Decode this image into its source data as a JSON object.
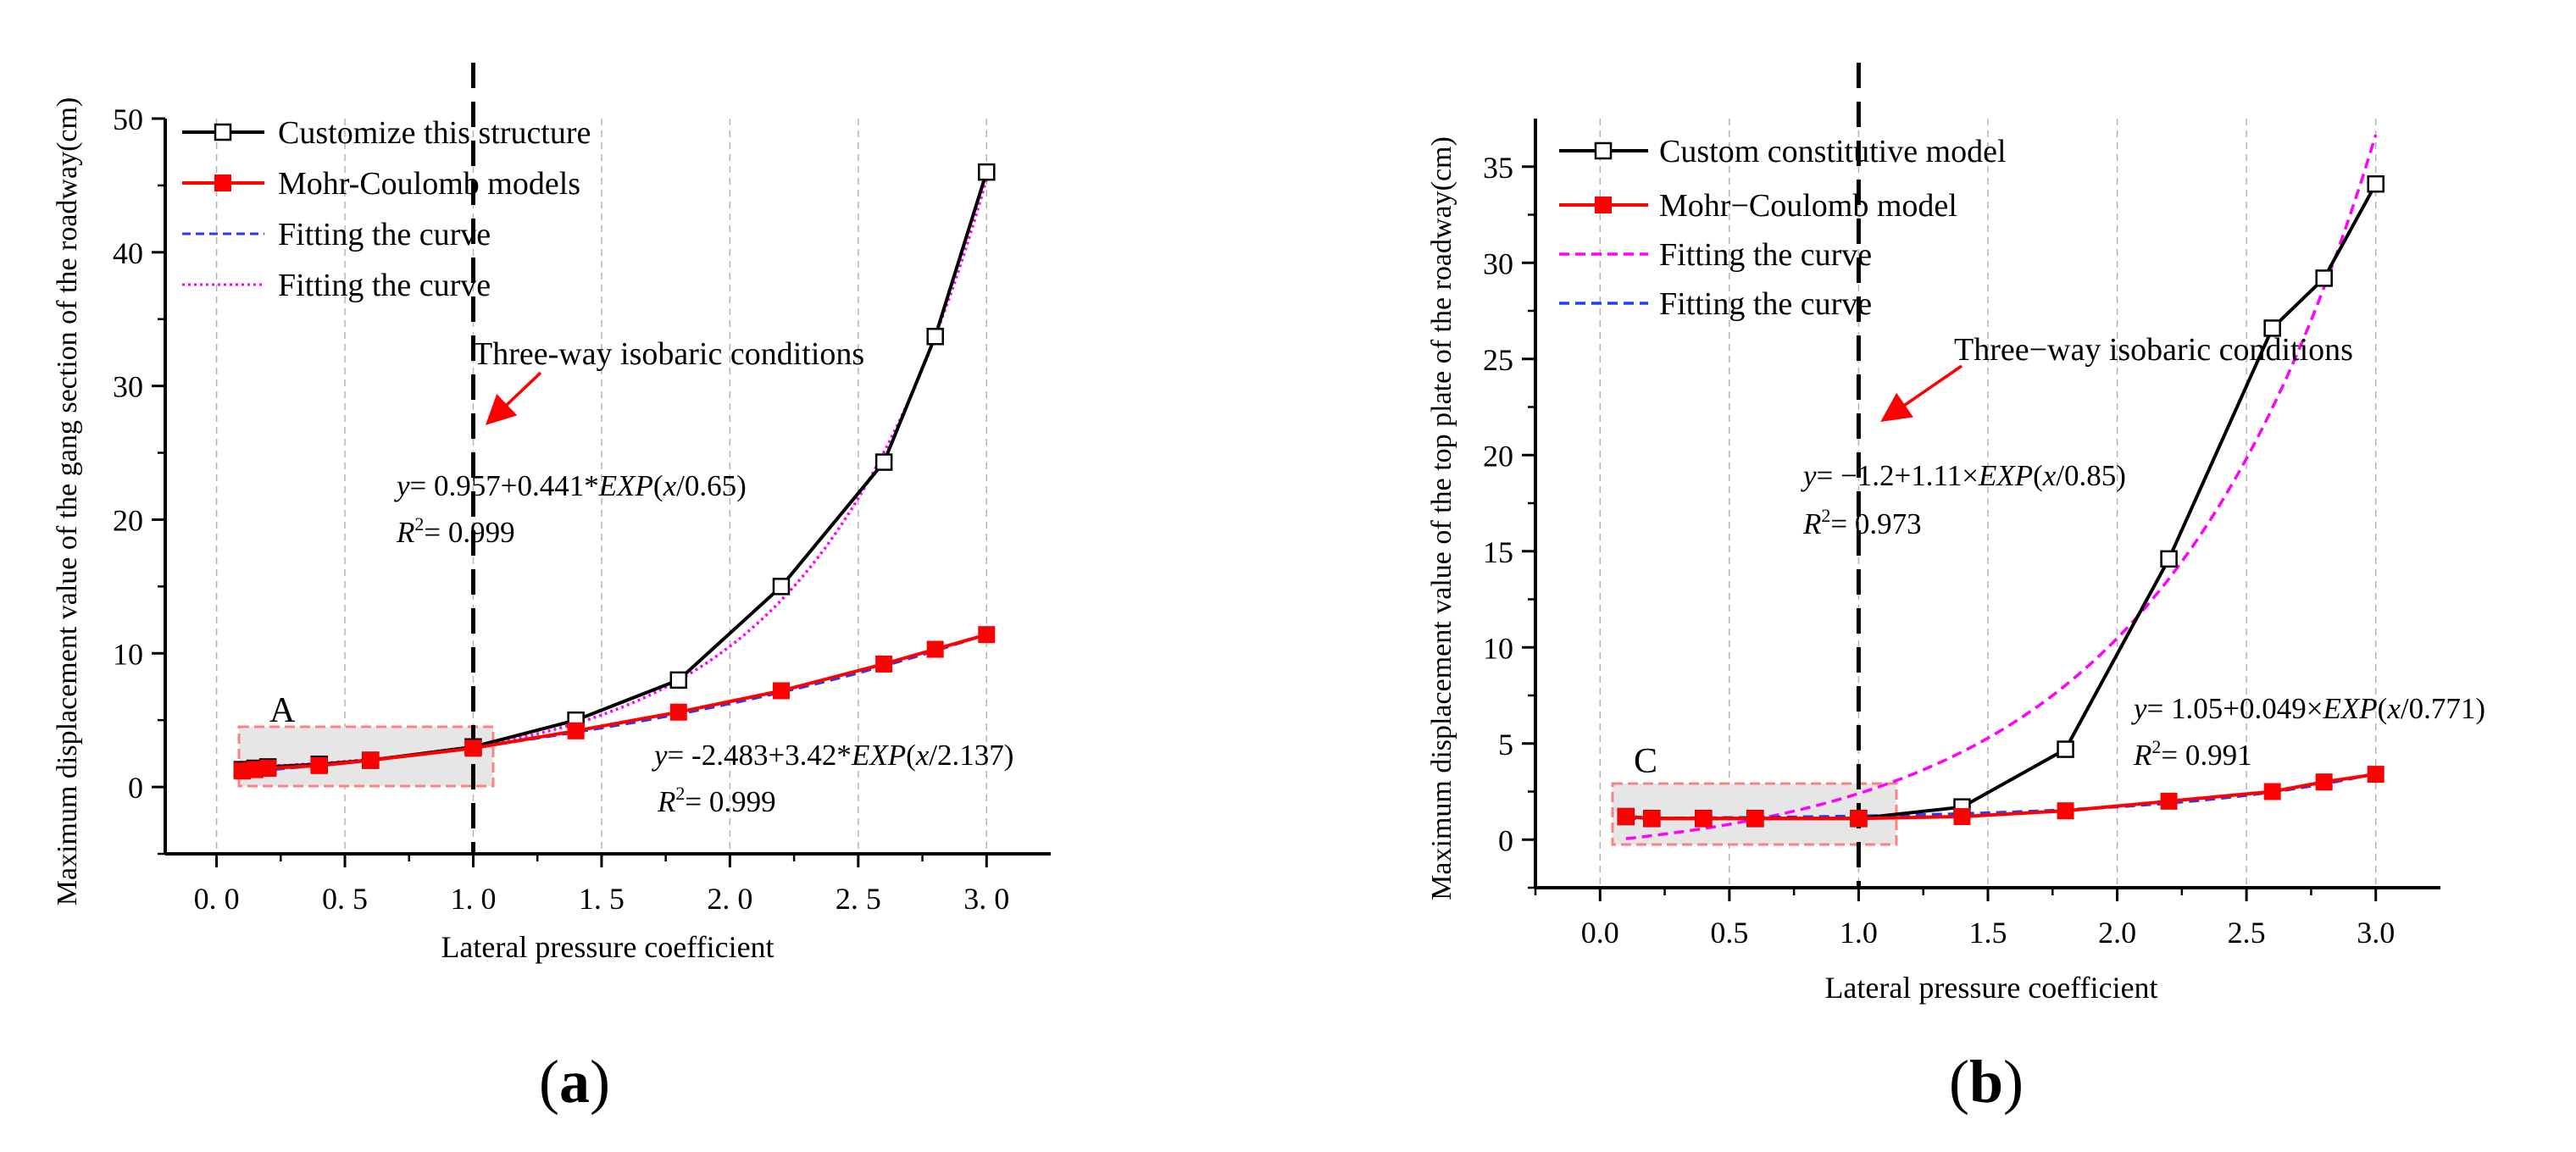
{
  "chart_data": [
    {
      "type": "line",
      "panel_label": "a",
      "xlabel": "Lateral pressure coefficient",
      "ylabel": "Maximum displacement value of the gang section of the roadway(cm)",
      "xlim": [
        -0.2,
        3.25
      ],
      "ylim": [
        -5,
        50
      ],
      "xticks": [
        0.0,
        0.5,
        1.0,
        1.5,
        2.0,
        2.5,
        3.0
      ],
      "xtick_labels": [
        "0. 0",
        "0. 5",
        "1. 0",
        "1. 5",
        "2. 0",
        "2. 5",
        "3. 0"
      ],
      "yticks": [
        0,
        10,
        20,
        30,
        40,
        50
      ],
      "ytick_labels": [
        "0",
        "10",
        "20",
        "30",
        "40",
        "50"
      ],
      "grid": "vertical dashed",
      "legend_position": "top-left",
      "series": [
        {
          "name": "Customize this structure",
          "kind": "data",
          "color": "#000000",
          "marker": "open-square",
          "x": [
            0.1,
            0.15,
            0.2,
            0.4,
            0.6,
            1.0,
            1.4,
            1.8,
            2.2,
            2.6,
            2.8,
            3.0
          ],
          "y": [
            1.3,
            1.4,
            1.5,
            1.7,
            2.0,
            3.0,
            5.0,
            8.0,
            15.0,
            24.3,
            33.7,
            46.0
          ]
        },
        {
          "name": "Mohr-Coulomb models",
          "kind": "data",
          "color": "#ff0000",
          "marker": "filled-square",
          "x": [
            0.1,
            0.15,
            0.2,
            0.4,
            0.6,
            1.0,
            1.4,
            1.8,
            2.2,
            2.6,
            2.8,
            3.0
          ],
          "y": [
            1.2,
            1.3,
            1.4,
            1.6,
            2.0,
            2.9,
            4.2,
            5.6,
            7.2,
            9.2,
            10.3,
            11.4
          ]
        },
        {
          "name": "Fitting the curve",
          "kind": "fit",
          "color": "#1f3cff",
          "dash": "dashed",
          "equation": {
            "a": -2.483,
            "b": 3.42,
            "c": 2.137
          },
          "x_range": [
            0.1,
            3.0
          ]
        },
        {
          "name": "Fitting the curve",
          "kind": "fit",
          "color": "#ff00ff",
          "dash": "dotted",
          "equation": {
            "a": 0.957,
            "b": 0.441,
            "c": 0.65
          },
          "x_range": [
            0.1,
            3.0
          ]
        }
      ],
      "vline": {
        "x": 1.0
      },
      "annotations": {
        "arrow_label": "Three-way isobaric conditions",
        "eq1": "y= 0.957+0.441*EXP(x/0.65)",
        "eq1_y": "y",
        "eq1_body": "= 0.957+0.441*",
        "eq1_exp": "EXP",
        "eq1_open": "(",
        "eq1_x": "x",
        "eq1_tail": "/0.65)",
        "eq1_r2": "= 0.999",
        "eq2": "y= -2.483+3.42*EXP(x/2.137)",
        "eq2_y": "y",
        "eq2_body": "= -2.483+3.42*",
        "eq2_exp": "EXP",
        "eq2_open": "(",
        "eq2_x": "x",
        "eq2_tail": "/2.137)",
        "eq2_r2": "= 0.999",
        "r_letter": "R",
        "r_sup": "2",
        "region_label": "A"
      }
    },
    {
      "type": "line",
      "panel_label": "b",
      "xlabel": "Lateral pressure coefficient",
      "ylabel": "Maximum displacement value of the top plate of the roadway(cm)",
      "xlim": [
        -0.25,
        3.25
      ],
      "ylim": [
        -2.5,
        37.5
      ],
      "xticks": [
        0.0,
        0.5,
        1.0,
        1.5,
        2.0,
        2.5,
        3.0
      ],
      "xtick_labels": [
        "0.0",
        "0.5",
        "1.0",
        "1.5",
        "2.0",
        "2.5",
        "3.0"
      ],
      "yticks": [
        0,
        5,
        10,
        15,
        20,
        25,
        30,
        35
      ],
      "ytick_labels": [
        "0",
        "5",
        "10",
        "15",
        "20",
        "25",
        "30",
        "35"
      ],
      "grid": "vertical dashed",
      "legend_position": "top-left",
      "series": [
        {
          "name": "Custom constitutive model",
          "kind": "data",
          "color": "#000000",
          "marker": "open-square",
          "x": [
            0.1,
            0.2,
            0.4,
            0.6,
            1.0,
            1.4,
            1.8,
            2.2,
            2.6,
            2.8,
            3.0
          ],
          "y": [
            1.2,
            1.1,
            1.1,
            1.1,
            1.1,
            1.7,
            4.7,
            14.6,
            26.6,
            29.2,
            34.1
          ]
        },
        {
          "name": "Mohr−Coulomb model",
          "kind": "data",
          "color": "#ff0000",
          "marker": "filled-square",
          "x": [
            0.1,
            0.2,
            0.4,
            0.6,
            1.0,
            1.4,
            1.8,
            2.2,
            2.6,
            2.8,
            3.0
          ],
          "y": [
            1.2,
            1.1,
            1.1,
            1.1,
            1.1,
            1.2,
            1.5,
            2.0,
            2.5,
            3.0,
            3.4
          ]
        },
        {
          "name": "Fitting the curve",
          "kind": "fit",
          "color": "#ff00ff",
          "dash": "dashed",
          "equation": {
            "a": -1.2,
            "b": 1.11,
            "c": 0.85
          },
          "x_range": [
            0.1,
            3.0
          ]
        },
        {
          "name": "Fitting the curve",
          "kind": "fit",
          "color": "#1f3cff",
          "dash": "dashed",
          "equation": {
            "a": 1.05,
            "b": 0.049,
            "c": 0.771
          },
          "x_range": [
            0.1,
            3.0
          ]
        }
      ],
      "vline": {
        "x": 1.0
      },
      "annotations": {
        "arrow_label": "Three−way isobaric conditions",
        "eq1": "y= −1.2+1.11×EXP(x/0.85)",
        "eq1_y": "y",
        "eq1_body": "= −1.2+1.11×",
        "eq1_exp": "EXP",
        "eq1_open": "(",
        "eq1_x": "x",
        "eq1_tail": "/0.85)",
        "eq1_r2": "= 0.973",
        "eq2": "y= 1.05+0.049×EXP(x/0.771)",
        "eq2_y": "y",
        "eq2_body": "= 1.05+0.049×",
        "eq2_exp": "EXP",
        "eq2_open": "(",
        "eq2_x": "x",
        "eq2_tail": "/0.771)",
        "eq2_r2": "= 0.991",
        "r_letter": "R",
        "r_sup": "2",
        "region_label": "C"
      }
    }
  ],
  "captions": {
    "a_open": "(",
    "a_letter": "a",
    "a_close": ")",
    "b_open": "(",
    "b_letter": "b",
    "b_close": ")"
  }
}
